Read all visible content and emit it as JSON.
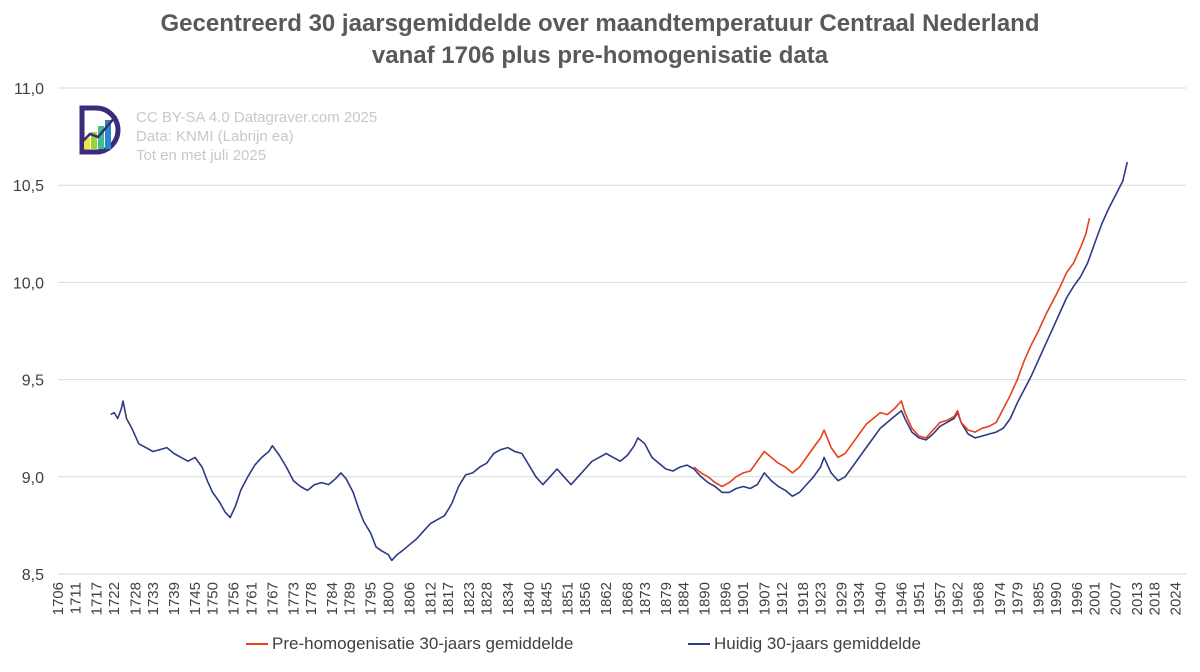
{
  "header": {
    "title_line1": "Gecentreerd 30 jaarsgemiddelde over maandtemperatuur Centraal Nederland",
    "title_line2": "vanaf 1706 plus pre-homogenisatie data"
  },
  "watermark": {
    "line1": "CC BY-SA 4.0  Datagraver.com 2025",
    "line2": "Data: KNMI (Labrijn ea)",
    "line3": "Tot en met  juli 2025"
  },
  "colors": {
    "pre_homogenisatie": "#e8401c",
    "huidig": "#2e3a87",
    "grid": "#d9d9d9",
    "logo_purple": "#3d2a7a",
    "logo_bars": [
      "#e6ea3c",
      "#9fd13a",
      "#3fbf8a",
      "#2a86c8"
    ]
  },
  "legend": {
    "pre": "Pre-homogenisatie 30-jaars gemiddelde",
    "huidig": "Huidig 30-jaars gemiddelde"
  },
  "chart_data": {
    "type": "line",
    "title": "Gecentreerd 30 jaarsgemiddelde over maandtemperatuur Centraal Nederland vanaf 1706 plus pre-homogenisatie data",
    "xlabel": "",
    "ylabel": "",
    "xlim": [
      1706,
      2027
    ],
    "ylim": [
      8.5,
      11.0
    ],
    "yticks": [
      "8,5",
      "9,0",
      "9,5",
      "10,0",
      "10,5",
      "11,0"
    ],
    "xticks": [
      "1706",
      "1711",
      "1717",
      "1722",
      "1728",
      "1733",
      "1739",
      "1745",
      "1750",
      "1756",
      "1761",
      "1767",
      "1773",
      "1778",
      "1784",
      "1789",
      "1795",
      "1800",
      "1806",
      "1812",
      "1817",
      "1823",
      "1828",
      "1834",
      "1840",
      "1845",
      "1851",
      "1856",
      "1862",
      "1868",
      "1873",
      "1879",
      "1884",
      "1890",
      "1896",
      "1901",
      "1907",
      "1912",
      "1918",
      "1923",
      "1929",
      "1934",
      "1940",
      "1946",
      "1951",
      "1957",
      "1962",
      "1968",
      "1974",
      "1979",
      "1985",
      "1990",
      "1996",
      "2001",
      "2007",
      "2013",
      "2018",
      "2024"
    ],
    "grid": "horizontal",
    "legend_position": "bottom",
    "series": [
      {
        "name": "Huidig 30-jaars gemiddelde",
        "color": "#2e3a87",
        "points": [
          [
            1721.0,
            9.32
          ],
          [
            1722.0,
            9.33
          ],
          [
            1723.0,
            9.3
          ],
          [
            1724.0,
            9.35
          ],
          [
            1724.5,
            9.39
          ],
          [
            1725.5,
            9.3
          ],
          [
            1727.0,
            9.25
          ],
          [
            1729.0,
            9.17
          ],
          [
            1731.0,
            9.15
          ],
          [
            1733.0,
            9.13
          ],
          [
            1735.0,
            9.14
          ],
          [
            1737.0,
            9.15
          ],
          [
            1739.0,
            9.12
          ],
          [
            1741.0,
            9.1
          ],
          [
            1743.0,
            9.08
          ],
          [
            1745.0,
            9.1
          ],
          [
            1747.0,
            9.05
          ],
          [
            1748.5,
            8.98
          ],
          [
            1750.0,
            8.92
          ],
          [
            1752.0,
            8.87
          ],
          [
            1753.5,
            8.82
          ],
          [
            1755.0,
            8.79
          ],
          [
            1756.5,
            8.85
          ],
          [
            1758.0,
            8.93
          ],
          [
            1760.0,
            9.0
          ],
          [
            1762.0,
            9.06
          ],
          [
            1764.0,
            9.1
          ],
          [
            1766.0,
            9.13
          ],
          [
            1767.0,
            9.16
          ],
          [
            1769.0,
            9.11
          ],
          [
            1771.0,
            9.05
          ],
          [
            1773.0,
            8.98
          ],
          [
            1775.0,
            8.95
          ],
          [
            1777.0,
            8.93
          ],
          [
            1779.0,
            8.96
          ],
          [
            1781.0,
            8.97
          ],
          [
            1783.0,
            8.96
          ],
          [
            1785.0,
            8.99
          ],
          [
            1786.5,
            9.02
          ],
          [
            1788.0,
            8.99
          ],
          [
            1790.0,
            8.92
          ],
          [
            1791.5,
            8.84
          ],
          [
            1793.0,
            8.77
          ],
          [
            1795.0,
            8.71
          ],
          [
            1796.5,
            8.64
          ],
          [
            1798.0,
            8.62
          ],
          [
            1800.0,
            8.6
          ],
          [
            1801.0,
            8.57
          ],
          [
            1802.5,
            8.6
          ],
          [
            1804.0,
            8.62
          ],
          [
            1806.0,
            8.65
          ],
          [
            1808.0,
            8.68
          ],
          [
            1810.0,
            8.72
          ],
          [
            1812.0,
            8.76
          ],
          [
            1814.0,
            8.78
          ],
          [
            1816.0,
            8.8
          ],
          [
            1818.0,
            8.86
          ],
          [
            1820.0,
            8.95
          ],
          [
            1822.0,
            9.01
          ],
          [
            1824.0,
            9.02
          ],
          [
            1826.0,
            9.05
          ],
          [
            1828.0,
            9.07
          ],
          [
            1830.0,
            9.12
          ],
          [
            1832.0,
            9.14
          ],
          [
            1834.0,
            9.15
          ],
          [
            1836.0,
            9.13
          ],
          [
            1838.0,
            9.12
          ],
          [
            1840.0,
            9.06
          ],
          [
            1842.0,
            9.0
          ],
          [
            1844.0,
            8.96
          ],
          [
            1846.0,
            9.0
          ],
          [
            1848.0,
            9.04
          ],
          [
            1850.0,
            9.0
          ],
          [
            1852.0,
            8.96
          ],
          [
            1854.0,
            9.0
          ],
          [
            1856.0,
            9.04
          ],
          [
            1858.0,
            9.08
          ],
          [
            1860.0,
            9.1
          ],
          [
            1862.0,
            9.12
          ],
          [
            1864.0,
            9.1
          ],
          [
            1866.0,
            9.08
          ],
          [
            1868.0,
            9.11
          ],
          [
            1870.0,
            9.16
          ],
          [
            1871.0,
            9.2
          ],
          [
            1873.0,
            9.17
          ],
          [
            1875.0,
            9.1
          ],
          [
            1877.0,
            9.07
          ],
          [
            1879.0,
            9.04
          ],
          [
            1881.0,
            9.03
          ],
          [
            1883.0,
            9.05
          ],
          [
            1885.0,
            9.06
          ],
          [
            1887.0,
            9.04
          ],
          [
            1889.0,
            9.0
          ],
          [
            1891.0,
            8.97
          ],
          [
            1893.0,
            8.95
          ],
          [
            1895.0,
            8.92
          ],
          [
            1897.0,
            8.92
          ],
          [
            1899.0,
            8.94
          ],
          [
            1901.0,
            8.95
          ],
          [
            1903.0,
            8.94
          ],
          [
            1905.0,
            8.96
          ],
          [
            1907.0,
            9.02
          ],
          [
            1909.0,
            8.98
          ],
          [
            1911.0,
            8.95
          ],
          [
            1913.0,
            8.93
          ],
          [
            1915.0,
            8.9
          ],
          [
            1917.0,
            8.92
          ],
          [
            1919.0,
            8.96
          ],
          [
            1921.0,
            9.0
          ],
          [
            1923.0,
            9.05
          ],
          [
            1924.0,
            9.1
          ],
          [
            1926.0,
            9.02
          ],
          [
            1928.0,
            8.98
          ],
          [
            1930.0,
            9.0
          ],
          [
            1932.0,
            9.05
          ],
          [
            1934.0,
            9.1
          ],
          [
            1936.0,
            9.15
          ],
          [
            1938.0,
            9.2
          ],
          [
            1940.0,
            9.25
          ],
          [
            1942.0,
            9.28
          ],
          [
            1944.0,
            9.31
          ],
          [
            1946.0,
            9.34
          ],
          [
            1947.0,
            9.3
          ],
          [
            1949.0,
            9.23
          ],
          [
            1951.0,
            9.2
          ],
          [
            1953.0,
            9.19
          ],
          [
            1955.0,
            9.22
          ],
          [
            1957.0,
            9.26
          ],
          [
            1959.0,
            9.28
          ],
          [
            1961.0,
            9.3
          ],
          [
            1962.0,
            9.33
          ],
          [
            1963.0,
            9.28
          ],
          [
            1965.0,
            9.22
          ],
          [
            1967.0,
            9.2
          ],
          [
            1969.0,
            9.21
          ],
          [
            1971.0,
            9.22
          ],
          [
            1973.0,
            9.23
          ],
          [
            1975.0,
            9.25
          ],
          [
            1977.0,
            9.3
          ],
          [
            1979.0,
            9.38
          ],
          [
            1981.0,
            9.45
          ],
          [
            1983.0,
            9.52
          ],
          [
            1985.0,
            9.6
          ],
          [
            1987.0,
            9.68
          ],
          [
            1989.0,
            9.76
          ],
          [
            1991.0,
            9.84
          ],
          [
            1993.0,
            9.92
          ],
          [
            1995.0,
            9.98
          ],
          [
            1997.0,
            10.03
          ],
          [
            1999.0,
            10.1
          ],
          [
            2001.0,
            10.2
          ],
          [
            2003.0,
            10.3
          ],
          [
            2005.0,
            10.38
          ],
          [
            2007.0,
            10.45
          ],
          [
            2009.0,
            10.52
          ],
          [
            2010.3,
            10.62
          ]
        ]
      },
      {
        "name": "Pre-homogenisatie 30-jaars gemiddelde",
        "color": "#e8401c",
        "points": [
          [
            1887.0,
            9.05
          ],
          [
            1889.0,
            9.02
          ],
          [
            1891.0,
            9.0
          ],
          [
            1893.0,
            8.97
          ],
          [
            1895.0,
            8.95
          ],
          [
            1897.0,
            8.97
          ],
          [
            1899.0,
            9.0
          ],
          [
            1901.0,
            9.02
          ],
          [
            1903.0,
            9.03
          ],
          [
            1905.0,
            9.08
          ],
          [
            1907.0,
            9.13
          ],
          [
            1909.0,
            9.1
          ],
          [
            1911.0,
            9.07
          ],
          [
            1913.0,
            9.05
          ],
          [
            1915.0,
            9.02
          ],
          [
            1917.0,
            9.05
          ],
          [
            1919.0,
            9.1
          ],
          [
            1921.0,
            9.15
          ],
          [
            1923.0,
            9.2
          ],
          [
            1924.0,
            9.24
          ],
          [
            1926.0,
            9.15
          ],
          [
            1928.0,
            9.1
          ],
          [
            1930.0,
            9.12
          ],
          [
            1932.0,
            9.17
          ],
          [
            1934.0,
            9.22
          ],
          [
            1936.0,
            9.27
          ],
          [
            1938.0,
            9.3
          ],
          [
            1940.0,
            9.33
          ],
          [
            1942.0,
            9.32
          ],
          [
            1944.0,
            9.35
          ],
          [
            1946.0,
            9.39
          ],
          [
            1947.0,
            9.33
          ],
          [
            1949.0,
            9.25
          ],
          [
            1951.0,
            9.21
          ],
          [
            1953.0,
            9.2
          ],
          [
            1955.0,
            9.24
          ],
          [
            1957.0,
            9.28
          ],
          [
            1959.0,
            9.29
          ],
          [
            1961.0,
            9.31
          ],
          [
            1962.0,
            9.34
          ],
          [
            1963.0,
            9.28
          ],
          [
            1965.0,
            9.24
          ],
          [
            1967.0,
            9.23
          ],
          [
            1969.0,
            9.25
          ],
          [
            1971.0,
            9.26
          ],
          [
            1973.0,
            9.28
          ],
          [
            1975.0,
            9.35
          ],
          [
            1977.0,
            9.42
          ],
          [
            1979.0,
            9.5
          ],
          [
            1981.0,
            9.6
          ],
          [
            1983.0,
            9.68
          ],
          [
            1985.0,
            9.75
          ],
          [
            1987.0,
            9.83
          ],
          [
            1989.0,
            9.9
          ],
          [
            1991.0,
            9.97
          ],
          [
            1993.0,
            10.05
          ],
          [
            1995.0,
            10.1
          ],
          [
            1997.0,
            10.18
          ],
          [
            1998.5,
            10.25
          ],
          [
            1999.5,
            10.33
          ]
        ]
      }
    ]
  }
}
